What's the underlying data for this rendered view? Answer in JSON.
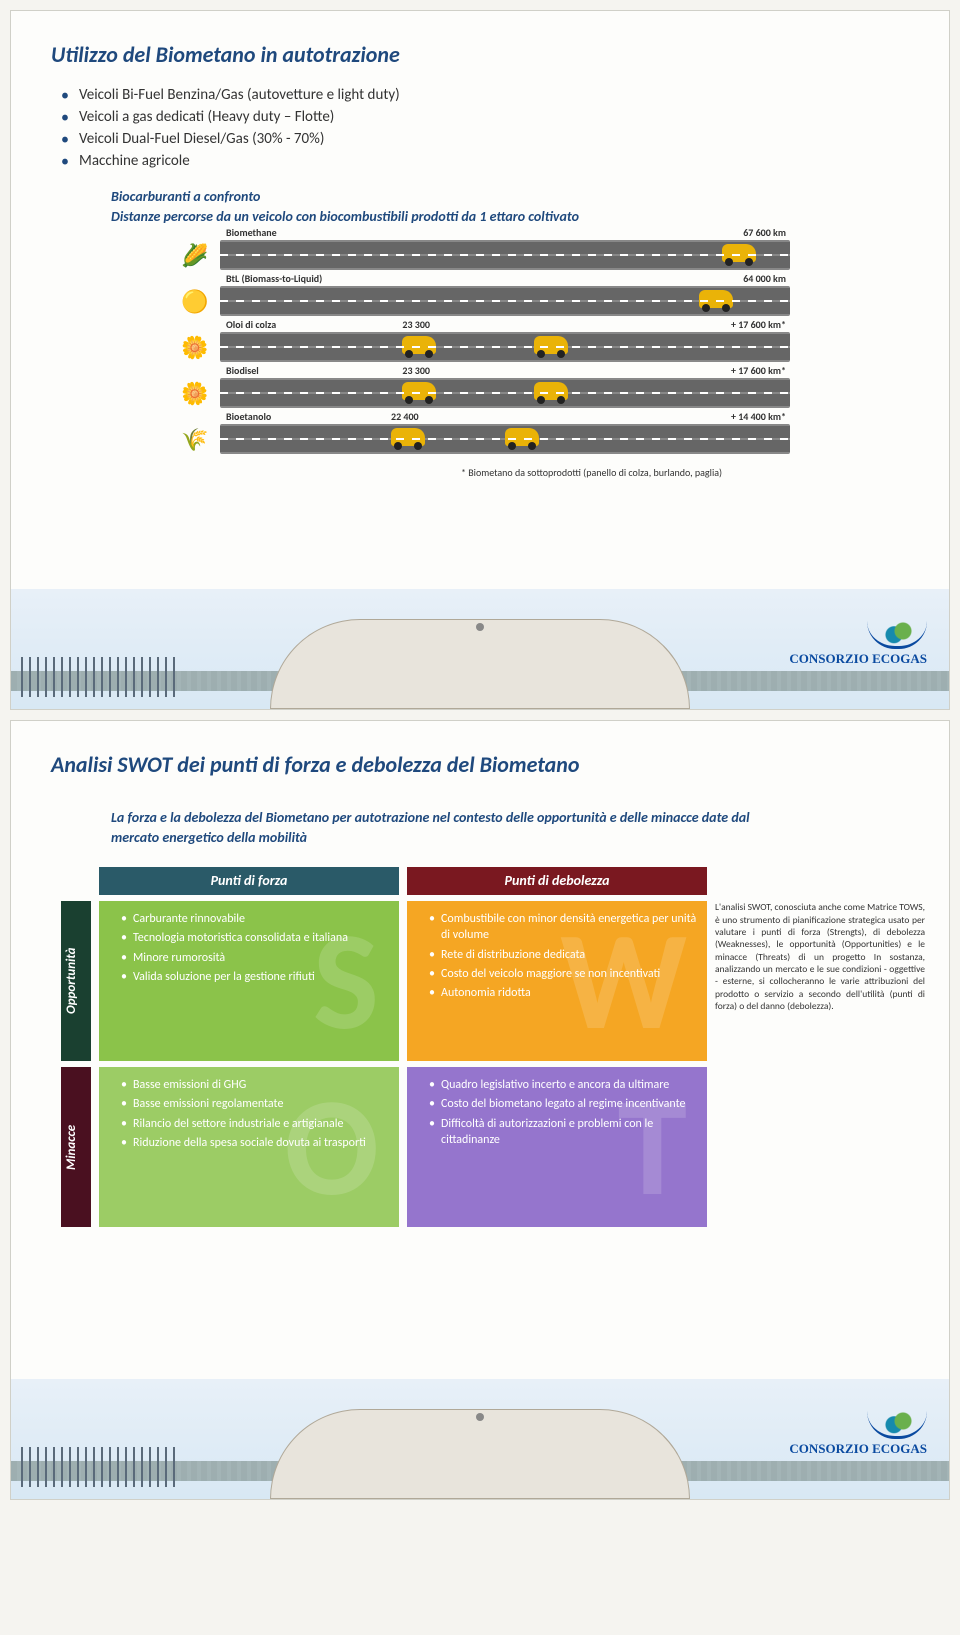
{
  "slide1": {
    "title": "Utilizzo del Biometano in autotrazione",
    "bullets": [
      "Veicoli Bi-Fuel Benzina/Gas (autovetture e light duty)",
      "Veicoli a gas dedicati (Heavy duty – Flotte)",
      "Veicoli Dual-Fuel Diesel/Gas (30% - 70%)",
      "Macchine agricole"
    ],
    "sub1": "Biocarburanti a confronto",
    "sub2": "Distanze percorse da un veicolo con biocombustibili prodotti da 1 ettaro coltivato",
    "fuels": [
      {
        "icon": "🌽",
        "name": "Biomethane",
        "km": "67 600 km",
        "main_pct": 88,
        "extra": null
      },
      {
        "icon": "🟡",
        "name": "BtL (Biomass-to-Liquid)",
        "km": "64 000 km",
        "main_pct": 84,
        "extra": null
      },
      {
        "icon": "🌼",
        "name": "Oloi di colza",
        "main_label": "23 300",
        "km": "+ 17 600 km*",
        "main_pct": 32,
        "extra_pct": 55
      },
      {
        "icon": "🌼",
        "name": "Biodisel",
        "main_label": "23 300",
        "km": "+ 17 600 km*",
        "main_pct": 32,
        "extra_pct": 55
      },
      {
        "icon": "🌾",
        "name": "Bioetanolo",
        "main_label": "22 400",
        "km": "+ 14 400 km*",
        "main_pct": 30,
        "extra_pct": 50
      }
    ],
    "note": "* Biometano da sottoprodotti (panello di colza, burlando, paglia)",
    "logo": "CONSORZIO ECOGAS"
  },
  "slide2": {
    "title": "Analisi SWOT dei punti di forza e debolezza del Biometano",
    "intro": "La forza e la debolezza del Biometano per autotrazione nel contesto delle opportunità e delle minacce date dal mercato energetico della mobilità",
    "headers": {
      "pf": "Punti di forza",
      "pd": "Punti di debolezza"
    },
    "rows": {
      "op": "Opportunità",
      "mn": "Minacce"
    },
    "s": [
      "Carburante rinnovabile",
      "Tecnologia motoristica consolidata e italiana",
      "Minore rumorosità",
      "Valida soluzione per la gestione rifiuti"
    ],
    "w": [
      "Combustibile con minor densità energetica per unità di volume",
      "Rete di distribuzione dedicata",
      "Costo del veicolo maggiore se non incentivati",
      "Autonomia ridotta"
    ],
    "o": [
      "Basse emissioni di GHG",
      "Basse emissioni regolamentate",
      "Rilancio del settore industriale e artigianale",
      "Riduzione della spesa sociale dovuta ai trasporti"
    ],
    "t": [
      "Quadro legislativo incerto e ancora da ultimare",
      "Costo del biometano legato al regime incentivante",
      "Difficoltà di autorizzazioni e problemi con le cittadinanze"
    ],
    "letters": {
      "s": "S",
      "w": "W",
      "o": "O",
      "t": "T"
    },
    "notes": "L'analisi SWOT, conosciuta anche come Matrice TOWS, è uno strumento di pianificazione strategica usato per valutare i punti di forza (Strengts), di debolezza (Weaknesses), le opportunità (Opportunities) e le minacce (Threats) di un progetto In sostanza, analizzando un mercato e le sue condizioni - oggettive - esterne, si collocheranno le varie attribuzioni del prodotto o servizio a secondo dell'utilità (punti di forza) o del danno (debolezza).",
    "logo": "CONSORZIO ECOGAS"
  }
}
